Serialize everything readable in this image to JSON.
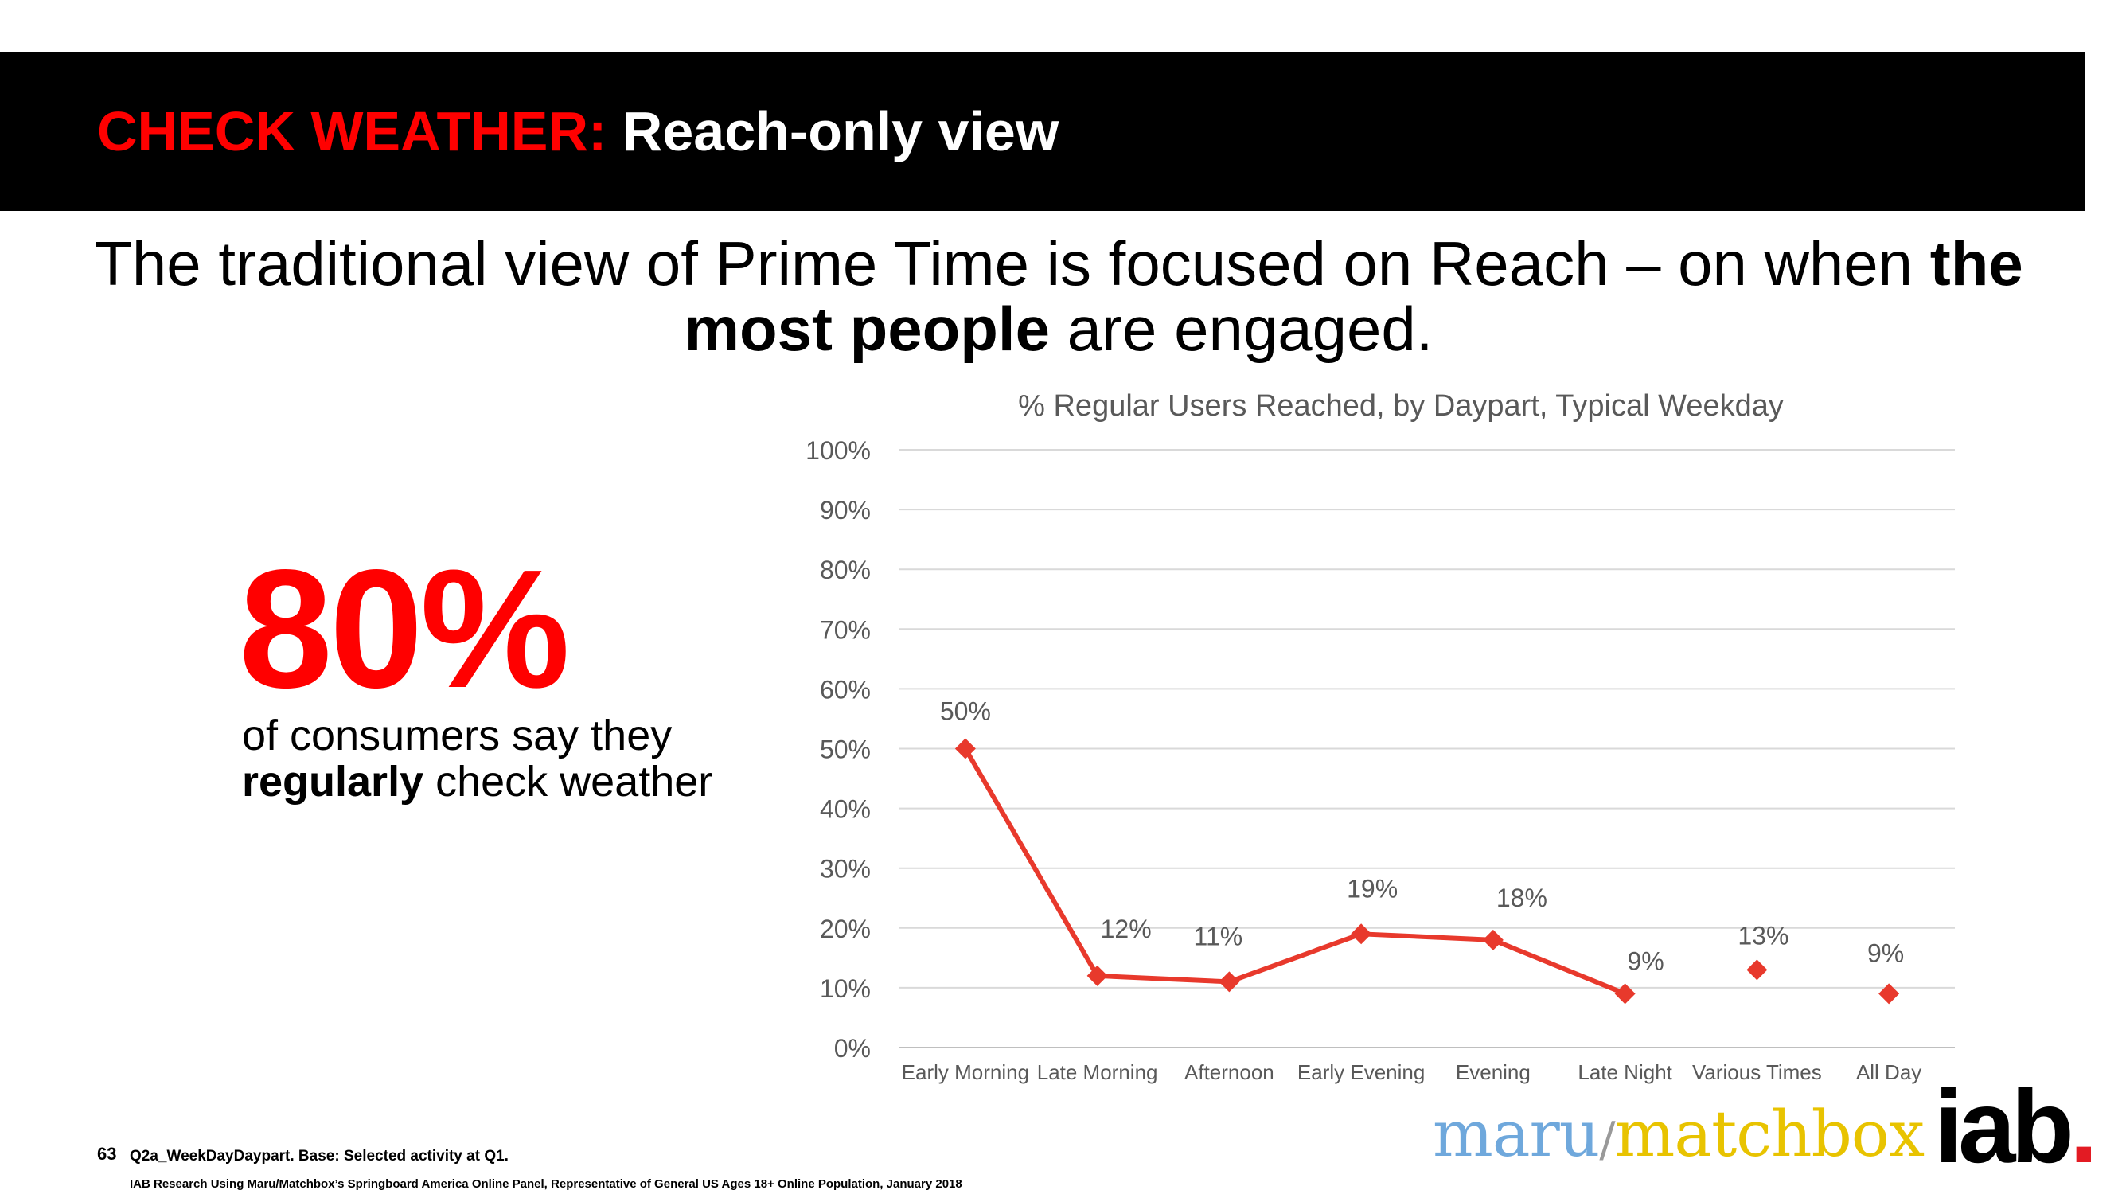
{
  "header": {
    "title_highlight": "CHECK WEATHER:",
    "title_rest": "Reach-only view"
  },
  "headline": {
    "part1": "The traditional view of Prime Time is focused on Reach – on when ",
    "bold": "the most people",
    "part2": " are engaged."
  },
  "stat": {
    "value": "80%",
    "line_pre": "of consumers say they ",
    "bold": "regularly",
    "line_post": " check weather"
  },
  "chart_data": {
    "type": "line",
    "title": "% Regular Users Reached, by Daypart, Typical Weekday",
    "categories": [
      "Early Morning",
      "Late Morning",
      "Afternoon",
      "Early Evening",
      "Evening",
      "Late Night",
      "Various Times",
      "All Day"
    ],
    "values": [
      50,
      12,
      11,
      19,
      18,
      9,
      13,
      9
    ],
    "data_labels": [
      "50%",
      "12%",
      "11%",
      "19%",
      "18%",
      "9%",
      "13%",
      "9%"
    ],
    "line_connected_points": 6,
    "ylim": [
      0,
      100
    ],
    "yticks": [
      "0%",
      "10%",
      "20%",
      "30%",
      "40%",
      "50%",
      "60%",
      "70%",
      "80%",
      "90%",
      "100%"
    ],
    "grid": true,
    "color": "#e8392c"
  },
  "footer": {
    "page_number": "63",
    "note1": "Q2a_WeekDayDaypart. Base: Selected activity at Q1.",
    "note2": "IAB Research Using Maru/Matchbox’s Springboard America Online Panel, Representative of General US Ages 18+ Online Population, January 2018"
  },
  "logos": {
    "maru": "maru",
    "slash": "/",
    "matchbox": "matchbox",
    "iab": "iab",
    "iab_dot": "."
  }
}
